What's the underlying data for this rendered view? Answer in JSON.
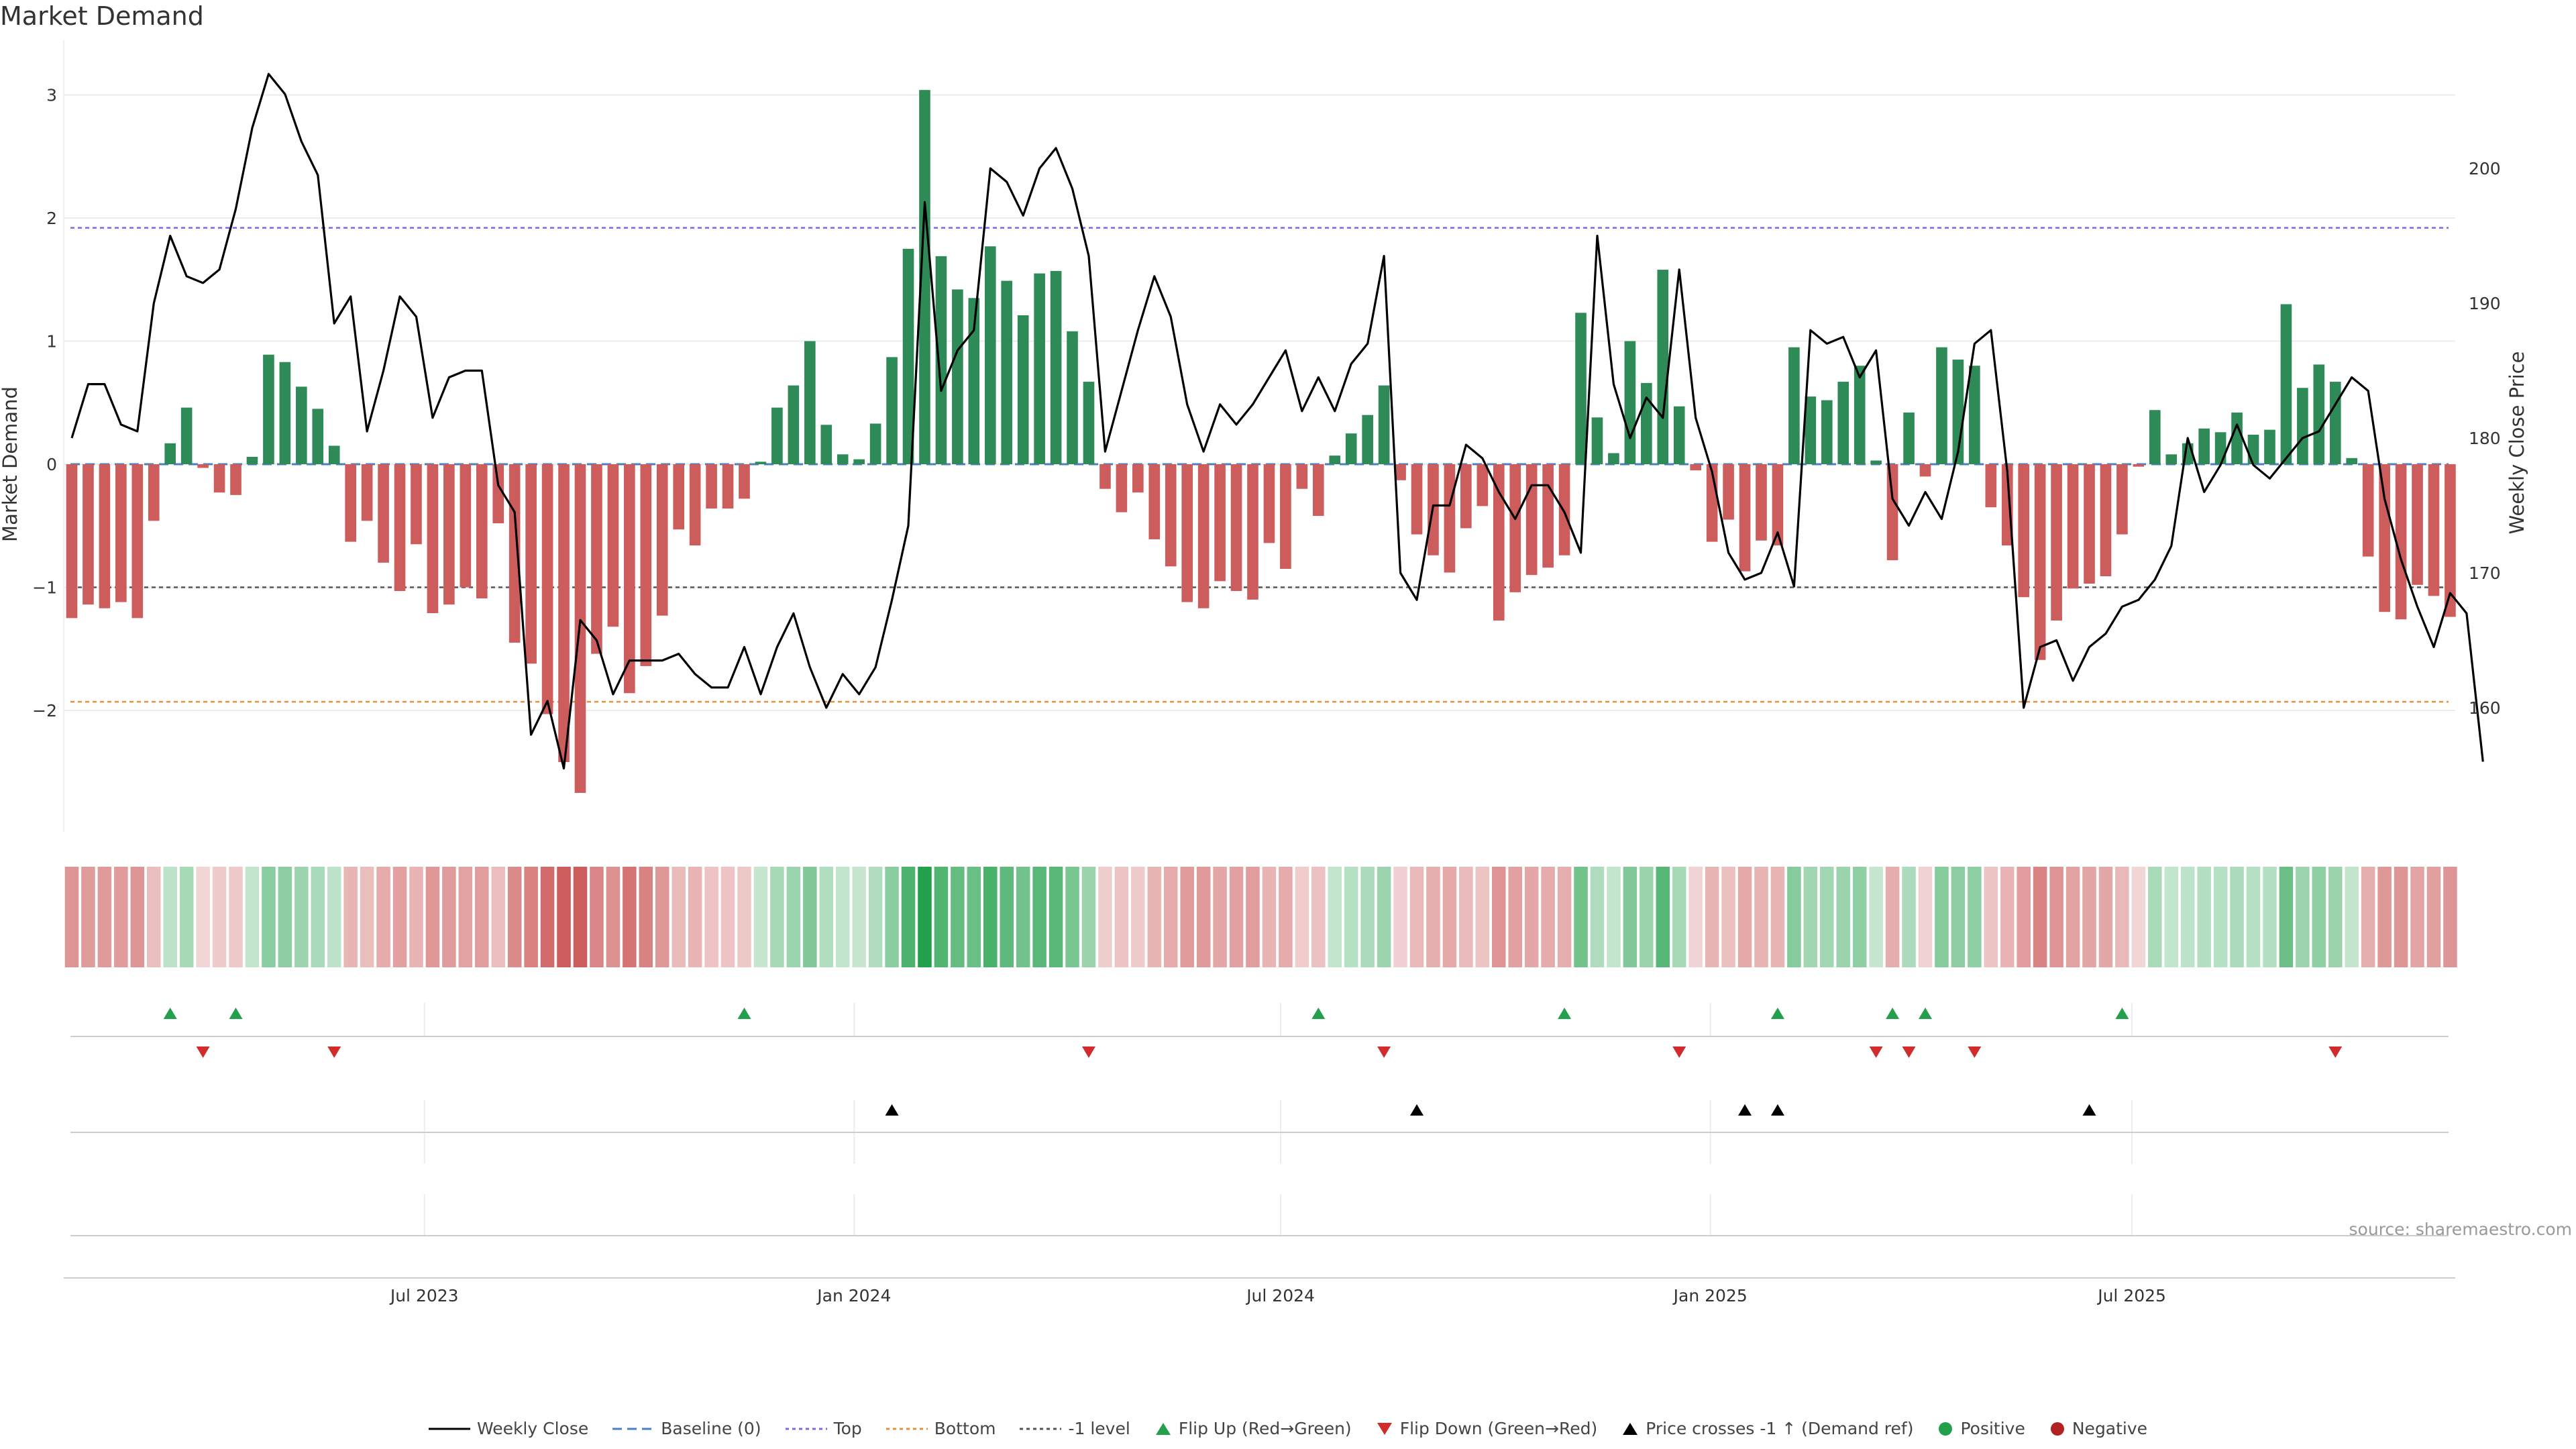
{
  "title": "Market Demand",
  "source": "source: sharemaestro.com",
  "chart_data": {
    "type": "bar",
    "title": "Market Demand",
    "ylabel": "Market Demand",
    "y2label": "Weekly Close Price",
    "ylim": [
      -2.7,
      3.1
    ],
    "y2lim": [
      155,
      207
    ],
    "yticks": [
      -2,
      -1,
      0,
      1,
      2,
      3
    ],
    "yticklabels": [
      "−2",
      "−1",
      "0",
      "1",
      "2",
      "3"
    ],
    "y2ticks": [
      160,
      170,
      180,
      190,
      200
    ],
    "xticks": [
      {
        "week": 21.5,
        "label": "Jul 2023"
      },
      {
        "week": 47.7,
        "label": "Jan 2024"
      },
      {
        "week": 73.7,
        "label": "Jul 2024"
      },
      {
        "week": 99.9,
        "label": "Jan 2025"
      },
      {
        "week": 125.6,
        "label": "Jul 2025"
      }
    ],
    "reference_lines": {
      "top": 1.92,
      "bottom": -1.93,
      "minus_one": -1.0,
      "baseline": 0
    },
    "demand": [
      -1.25,
      -1.14,
      -1.17,
      -1.12,
      -1.25,
      -0.46,
      0.17,
      0.46,
      -0.03,
      -0.23,
      -0.25,
      0.06,
      0.89,
      0.83,
      0.63,
      0.45,
      0.15,
      -0.63,
      -0.46,
      -0.8,
      -1.03,
      -0.65,
      -1.21,
      -1.14,
      -1.0,
      -1.09,
      -0.48,
      -1.45,
      -1.62,
      -2.03,
      -2.42,
      -2.67,
      -1.54,
      -1.32,
      -1.86,
      -1.64,
      -1.23,
      -0.53,
      -0.66,
      -0.36,
      -0.36,
      -0.28,
      0.02,
      0.46,
      0.64,
      1.0,
      0.32,
      0.08,
      0.04,
      0.33,
      0.87,
      1.75,
      3.04,
      1.69,
      1.42,
      1.35,
      1.77,
      1.49,
      1.21,
      1.55,
      1.57,
      1.08,
      0.67,
      -0.2,
      -0.39,
      -0.23,
      -0.61,
      -0.83,
      -1.12,
      -1.17,
      -0.95,
      -1.03,
      -1.1,
      -0.64,
      -0.85,
      -0.2,
      -0.42,
      0.07,
      0.25,
      0.4,
      0.64,
      -0.13,
      -0.57,
      -0.74,
      -0.88,
      -0.52,
      -0.34,
      -1.27,
      -1.04,
      -0.9,
      -0.84,
      -0.74,
      1.23,
      0.38,
      0.09,
      1.0,
      0.66,
      1.58,
      0.47,
      -0.05,
      -0.63,
      -0.45,
      -0.87,
      -0.62,
      -0.66,
      0.95,
      0.55,
      0.52,
      0.67,
      0.8,
      0.03,
      -0.78,
      0.42,
      -0.1,
      0.95,
      0.85,
      0.8,
      -0.35,
      -0.66,
      -1.08,
      -1.59,
      -1.27,
      -1.01,
      -0.97,
      -0.91,
      -0.57,
      -0.02,
      0.44,
      0.08,
      0.17,
      0.29,
      0.26,
      0.42,
      0.24,
      0.28,
      1.3,
      0.62,
      0.81,
      0.67,
      0.05,
      -0.75,
      -1.2,
      -1.26,
      -0.98,
      -1.07,
      -1.24
    ],
    "weekly_close": [
      180,
      184,
      184,
      181,
      180.5,
      190,
      195,
      192,
      191.5,
      192.5,
      197,
      203,
      207,
      205.5,
      202,
      199.5,
      188.5,
      190.5,
      180.5,
      185,
      190.5,
      189,
      181.5,
      184.5,
      185,
      185,
      176.5,
      174.5,
      158,
      160.5,
      155.5,
      166.5,
      165,
      161,
      163.5,
      163.5,
      163.5,
      164,
      162.5,
      161.5,
      161.5,
      164.5,
      161,
      164.5,
      167,
      163,
      160,
      162.5,
      161,
      163,
      168,
      173.5,
      197.5,
      183.5,
      186.5,
      188,
      200,
      199,
      196.5,
      200,
      201.5,
      198.5,
      193.5,
      179,
      183.5,
      188,
      192,
      189,
      182.5,
      179,
      182.5,
      181,
      182.5,
      184.5,
      186.5,
      182,
      184.5,
      182,
      185.5,
      187,
      193.5,
      170,
      168,
      175,
      175,
      179.5,
      178.5,
      176,
      174,
      176.5,
      176.5,
      174.5,
      171.5,
      195,
      184,
      180,
      183,
      181.5,
      192.5,
      181.5,
      177.5,
      171.5,
      169.5,
      170,
      173,
      169,
      188,
      187,
      187.5,
      184.5,
      186.5,
      175.5,
      173.5,
      176,
      174,
      179,
      187,
      188,
      177.5,
      160,
      164.5,
      165,
      162,
      164.5,
      165.5,
      167.5,
      168,
      169.5,
      172,
      180,
      176,
      178,
      181,
      178,
      177,
      178.5,
      180,
      180.5,
      182.5,
      184.5,
      183.5,
      175.5,
      171,
      167.5,
      164.5,
      168.5,
      167,
      156
    ],
    "flip_up": [
      6,
      10,
      41,
      76,
      91,
      104,
      111,
      113,
      125
    ],
    "flip_down": [
      8,
      16,
      62,
      80,
      98,
      110,
      112,
      116,
      138
    ],
    "price_crosses_minus_one_up": [
      50,
      82,
      102,
      104,
      123
    ],
    "legend": [
      "Weekly Close",
      "Baseline (0)",
      "Top",
      "Bottom",
      "-1 level",
      "Flip Up (Red→Green)",
      "Flip Down (Green→Red)",
      "Price crosses -1 ↑ (Demand ref)",
      "Positive",
      "Negative"
    ]
  },
  "colors": {
    "positive": "#2e8b57",
    "negative": "#cd5c5c",
    "price": "#000000",
    "top_line": "#7b68ee",
    "bottom_line": "#e69138",
    "minus_one_line": "#555555",
    "baseline": "#4a7fc1",
    "flip_up": "#22a04b",
    "flip_down": "#d22b2b",
    "legend_positive": "#22a04b",
    "legend_negative": "#b22222"
  }
}
